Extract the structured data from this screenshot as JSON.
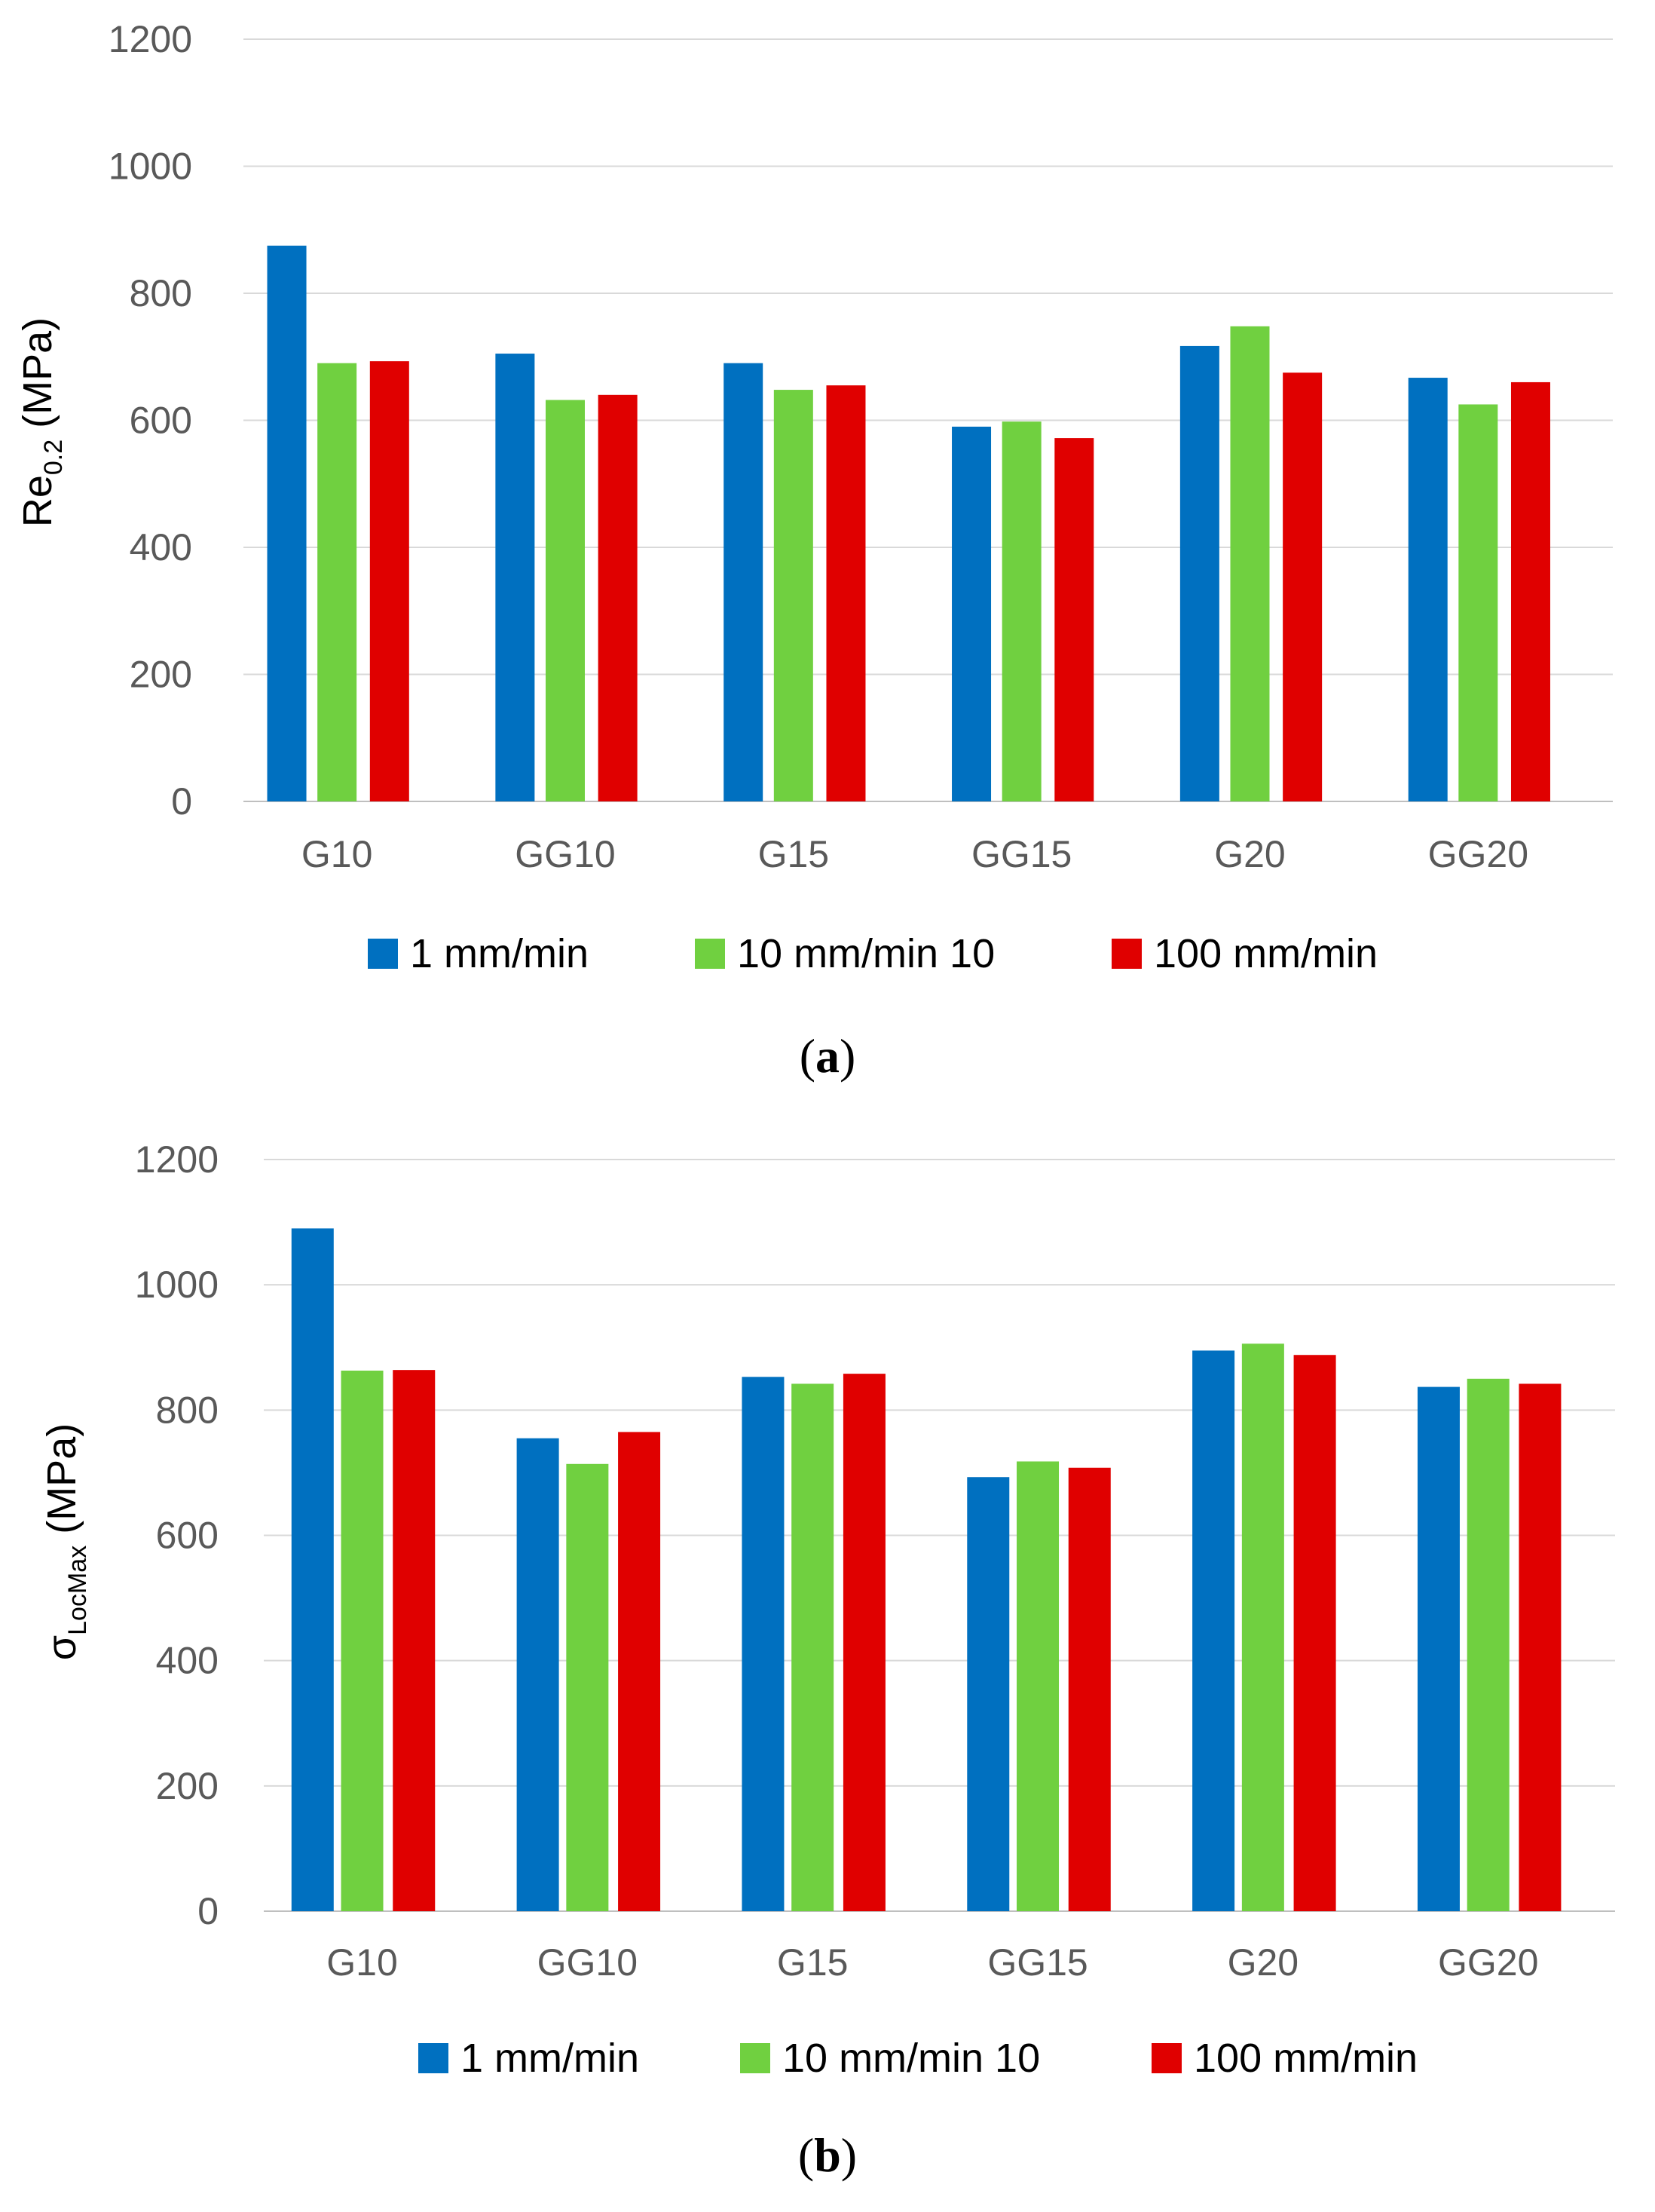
{
  "colors": {
    "s1": "#0070C0",
    "s2": "#70D040",
    "s3": "#E00000"
  },
  "chart_data": [
    {
      "type": "bar",
      "panel_label": "a",
      "ylabel_main": "Re",
      "ylabel_sub": "0.2",
      "ylabel_unit": " (MPa)",
      "ylim": [
        0,
        1200
      ],
      "yticks": [
        "0",
        "200",
        "400",
        "600",
        "800",
        "1000",
        "1200"
      ],
      "categories": [
        "G10",
        "GG10",
        "G15",
        "GG15",
        "G20",
        "GG20"
      ],
      "series": [
        {
          "name": "1 mm/min",
          "values": [
            875,
            705,
            690,
            590,
            717,
            667
          ]
        },
        {
          "name": "10 mm/min 10",
          "values": [
            690,
            632,
            648,
            598,
            748,
            625
          ]
        },
        {
          "name": "100 mm/min",
          "values": [
            693,
            640,
            655,
            572,
            675,
            660
          ]
        }
      ],
      "legend": "bottom"
    },
    {
      "type": "bar",
      "panel_label": "b",
      "ylabel_main": "σ",
      "ylabel_sub": "LocMax",
      "ylabel_unit": " (MPa)",
      "ylim": [
        0,
        1200
      ],
      "yticks": [
        "0",
        "200",
        "400",
        "600",
        "800",
        "1000",
        "1200"
      ],
      "categories": [
        "G10",
        "GG10",
        "G15",
        "GG15",
        "G20",
        "GG20"
      ],
      "series": [
        {
          "name": "1 mm/min",
          "values": [
            1090,
            755,
            853,
            693,
            895,
            837
          ]
        },
        {
          "name": "10 mm/min 10",
          "values": [
            863,
            714,
            842,
            718,
            906,
            850
          ]
        },
        {
          "name": "100 mm/min",
          "values": [
            864,
            765,
            858,
            708,
            888,
            842
          ]
        }
      ],
      "legend": "bottom"
    }
  ]
}
